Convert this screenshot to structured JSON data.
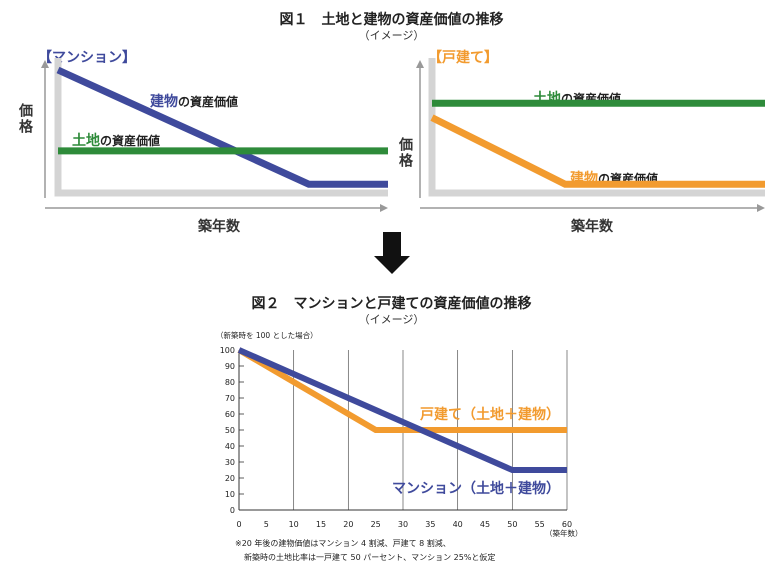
{
  "fig1": {
    "title": "図１　土地と建物の資産価値の推移",
    "subtitle": "（イメージ）",
    "left": {
      "header": "【マンション】",
      "ylabel": "価格",
      "xlabel": "築年数",
      "label_building_hl": "建物",
      "label_building_rest": "の資産価値",
      "label_land_hl": "土地",
      "label_land_rest": "の資産価値"
    },
    "right": {
      "header": "【戸建て】",
      "ylabel": "価格",
      "xlabel": "築年数",
      "label_building_hl": "建物",
      "label_building_rest": "の資産価値",
      "label_land_hl": "土地",
      "label_land_rest": "の資産価値"
    }
  },
  "fig2": {
    "title": "図２　マンションと戸建ての資産価値の推移",
    "subtitle": "（イメージ）",
    "note_line1": "※20 年後の建物価値はマンション 4 割減、戸建て 8 割減、",
    "note_line2": "新築時の土地比率は一戸建て 50 パーセント、マンション 25%と仮定"
  },
  "colors": {
    "mansion": "#3f4a9c",
    "house": "#f29b2f",
    "land": "#2e8b3a",
    "axis": "#999999",
    "arrow": "#111111"
  },
  "chart_data": [
    {
      "type": "line",
      "title": "【マンション】",
      "xlabel": "築年数",
      "ylabel": "価格",
      "series": [
        {
          "name": "建物の資産価値",
          "x": [
            0,
            0.76,
            1
          ],
          "y": [
            1,
            0.04,
            0.04
          ]
        },
        {
          "name": "土地の資産価値",
          "x": [
            0,
            1
          ],
          "y": [
            0.32,
            0.32
          ]
        }
      ]
    },
    {
      "type": "line",
      "title": "【戸建て】",
      "xlabel": "築年数",
      "ylabel": "価格",
      "series": [
        {
          "name": "土地の資産価値",
          "x": [
            0,
            1
          ],
          "y": [
            0.72,
            0.72
          ]
        },
        {
          "name": "建物の資産価値",
          "x": [
            0,
            0.4,
            1
          ],
          "y": [
            0.6,
            0.04,
            0.04
          ]
        }
      ]
    },
    {
      "type": "line",
      "title": "図２　マンションと戸建ての資産価値の推移",
      "ylabel": "（新築時を 100 とした場合）",
      "xlabel": "（築年数）",
      "xlim": [
        0,
        60
      ],
      "ylim": [
        0,
        100
      ],
      "xticks": [
        0,
        5,
        10,
        15,
        20,
        25,
        30,
        35,
        40,
        45,
        50,
        55,
        60
      ],
      "yticks": [
        0,
        10,
        20,
        30,
        40,
        50,
        60,
        70,
        80,
        90,
        100
      ],
      "vgrid": [
        10,
        20,
        30,
        40,
        50,
        60
      ],
      "series": [
        {
          "name": "戸建て（土地＋建物）",
          "x": [
            0,
            25,
            60
          ],
          "y": [
            100,
            50,
            50
          ]
        },
        {
          "name": "マンション（土地＋建物）",
          "x": [
            0,
            50,
            60
          ],
          "y": [
            100,
            25,
            25
          ]
        }
      ]
    }
  ]
}
